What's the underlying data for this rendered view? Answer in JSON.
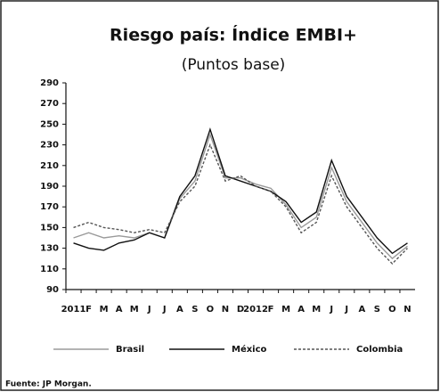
{
  "chart_data": {
    "type": "line",
    "title": "Riesgo país: Índice EMBI+",
    "subtitle": "(Puntos base)",
    "source": "Fuente: JP Morgan.",
    "categories": [
      "2011",
      "F",
      "M",
      "A",
      "M",
      "J",
      "J",
      "A",
      "S",
      "O",
      "N",
      "D",
      "2012",
      "F",
      "M",
      "A",
      "M",
      "J",
      "J",
      "A",
      "S",
      "O",
      "N"
    ],
    "series": [
      {
        "name": "Brasil",
        "color": "#9a9a9a",
        "dash": false,
        "values": [
          140,
          145,
          140,
          142,
          140,
          145,
          140,
          178,
          195,
          240,
          198,
          198,
          192,
          188,
          172,
          150,
          160,
          208,
          175,
          155,
          135,
          120,
          132
        ]
      },
      {
        "name": "México",
        "color": "#111111",
        "dash": false,
        "values": [
          135,
          130,
          128,
          135,
          138,
          145,
          140,
          180,
          200,
          245,
          200,
          195,
          190,
          185,
          175,
          155,
          165,
          215,
          180,
          160,
          140,
          125,
          135
        ]
      },
      {
        "name": "Colombia",
        "color": "#555555",
        "dash": true,
        "values": [
          150,
          155,
          150,
          148,
          145,
          148,
          145,
          175,
          190,
          230,
          195,
          200,
          190,
          185,
          170,
          145,
          155,
          200,
          170,
          150,
          130,
          115,
          130
        ]
      }
    ],
    "ylim": [
      90,
      290
    ],
    "yticks": [
      90,
      110,
      130,
      150,
      170,
      190,
      210,
      230,
      250,
      270,
      290
    ],
    "legend": "bottom"
  }
}
